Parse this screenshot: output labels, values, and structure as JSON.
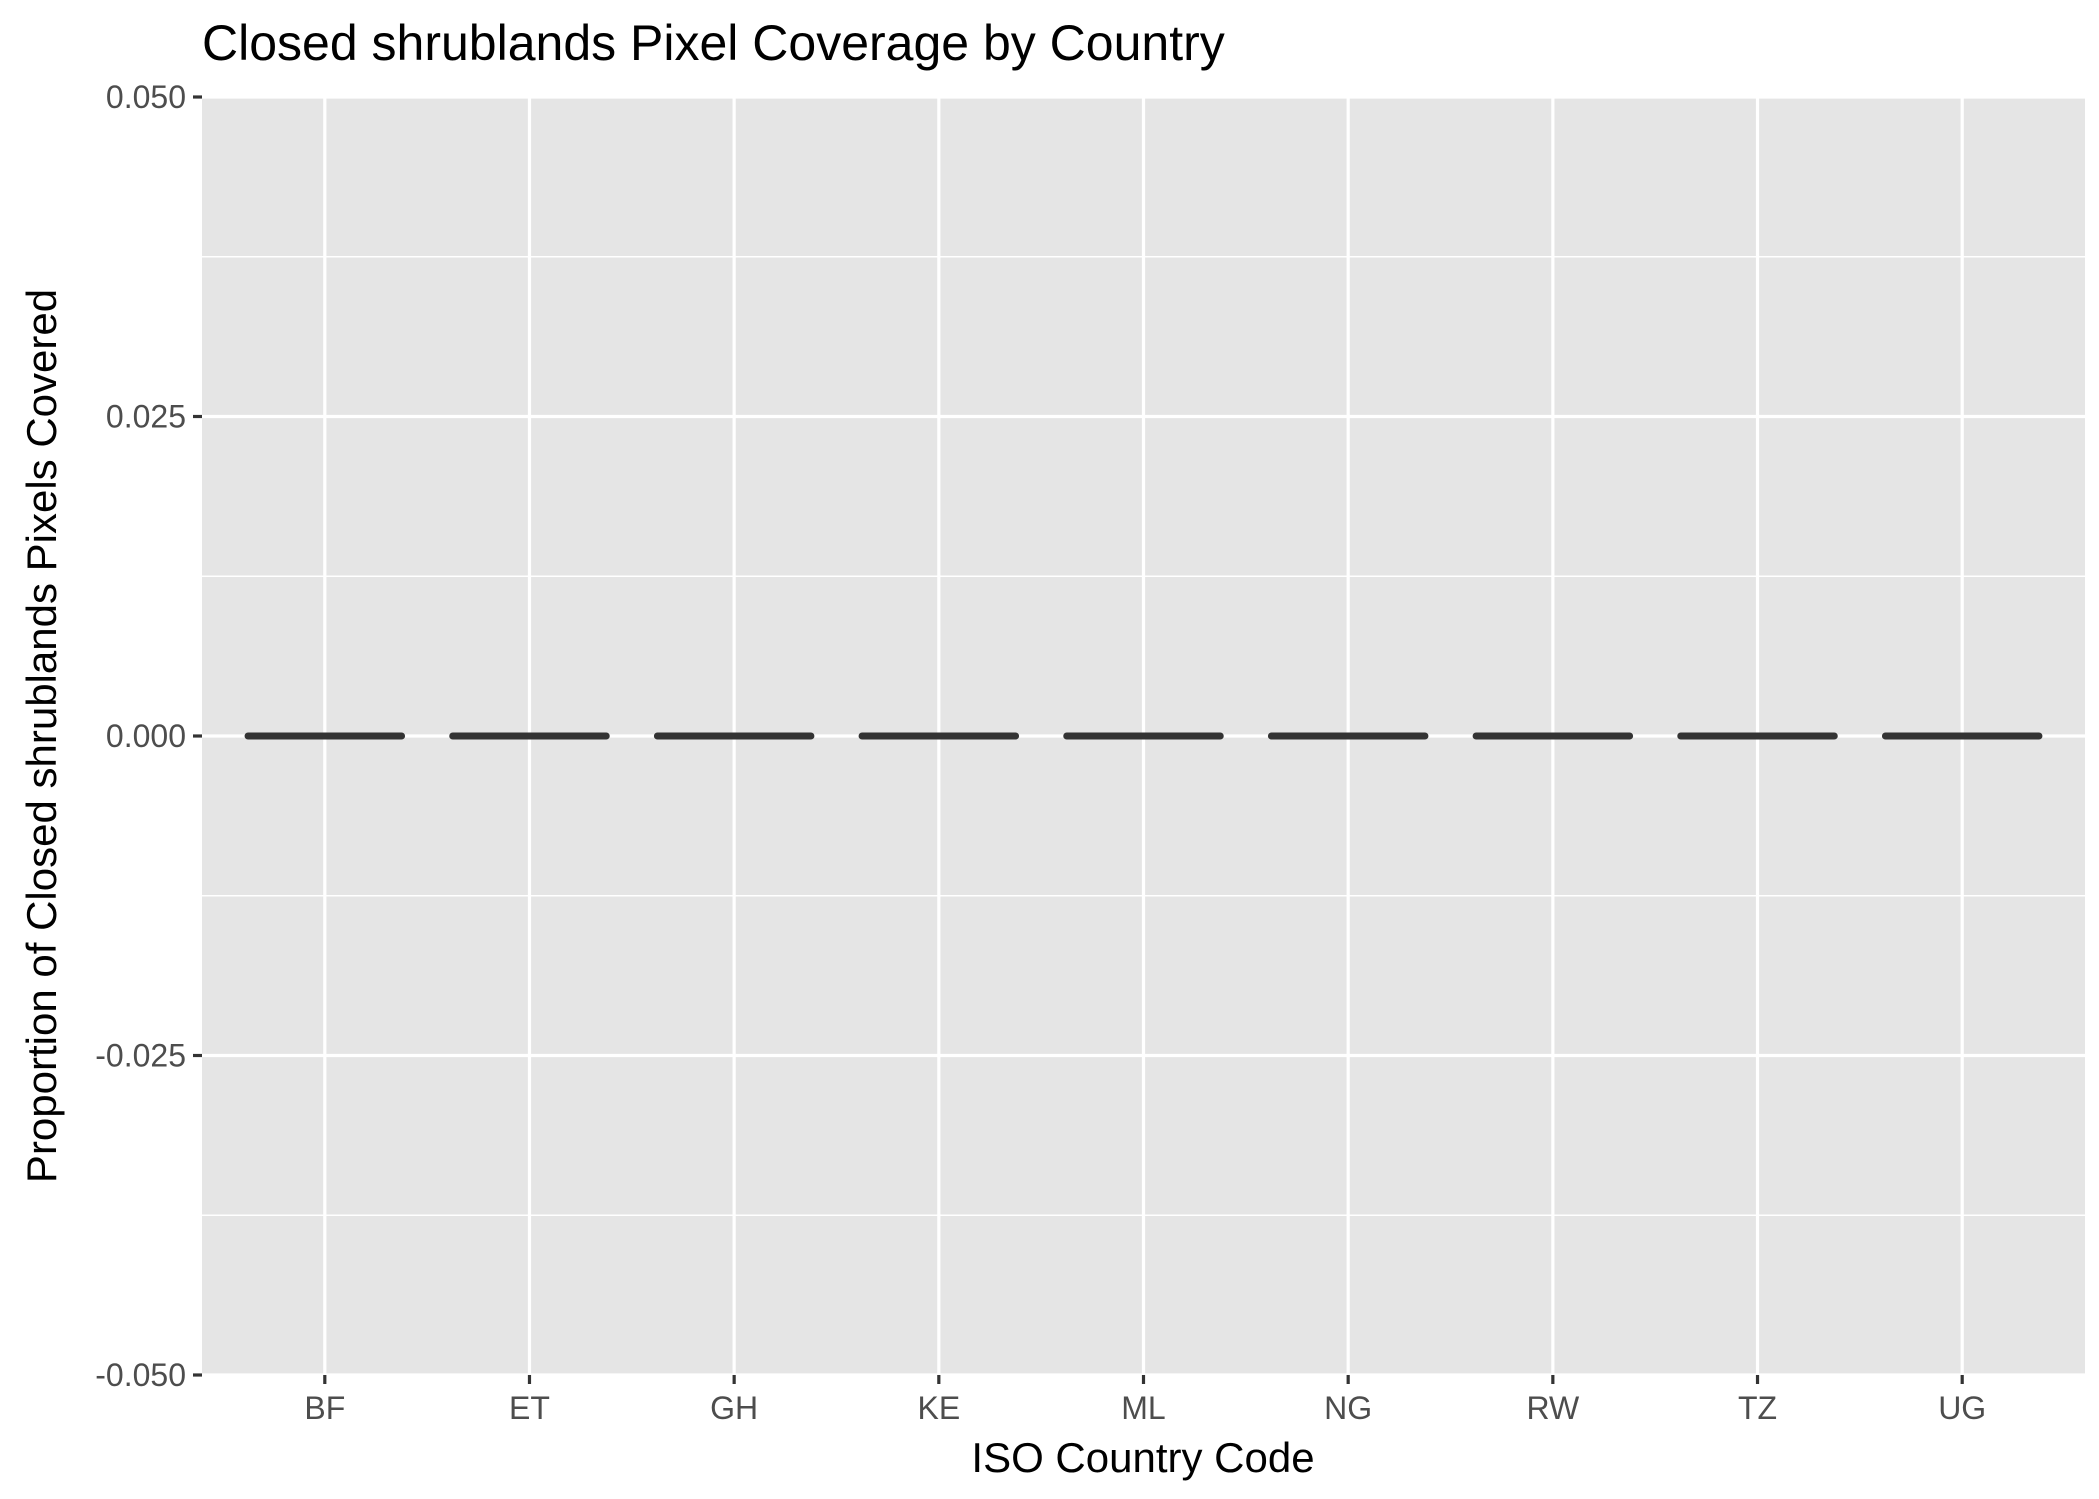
{
  "chart_data": {
    "type": "boxplot",
    "title": "Closed shrublands Pixel Coverage by Country",
    "xlabel": "ISO Country Code",
    "ylabel": "Proportion of Closed shrublands Pixels Covered",
    "categories": [
      "BF",
      "ET",
      "GH",
      "KE",
      "ML",
      "NG",
      "RW",
      "TZ",
      "UG"
    ],
    "values": [
      0,
      0,
      0,
      0,
      0,
      0,
      0,
      0,
      0
    ],
    "ylim": [
      -0.05,
      0.05
    ],
    "yticks": [
      -0.05,
      -0.025,
      0,
      0.025,
      0.05
    ],
    "ytick_labels": [
      "-0.050",
      "-0.025",
      "0.000",
      "0.025",
      "0.050"
    ],
    "grid": true,
    "colors": {
      "panel": "#e5e5e5",
      "grid": "#ffffff",
      "box": "#333333",
      "tick_text": "#4d4d4d",
      "tick_mark": "#333333"
    }
  }
}
